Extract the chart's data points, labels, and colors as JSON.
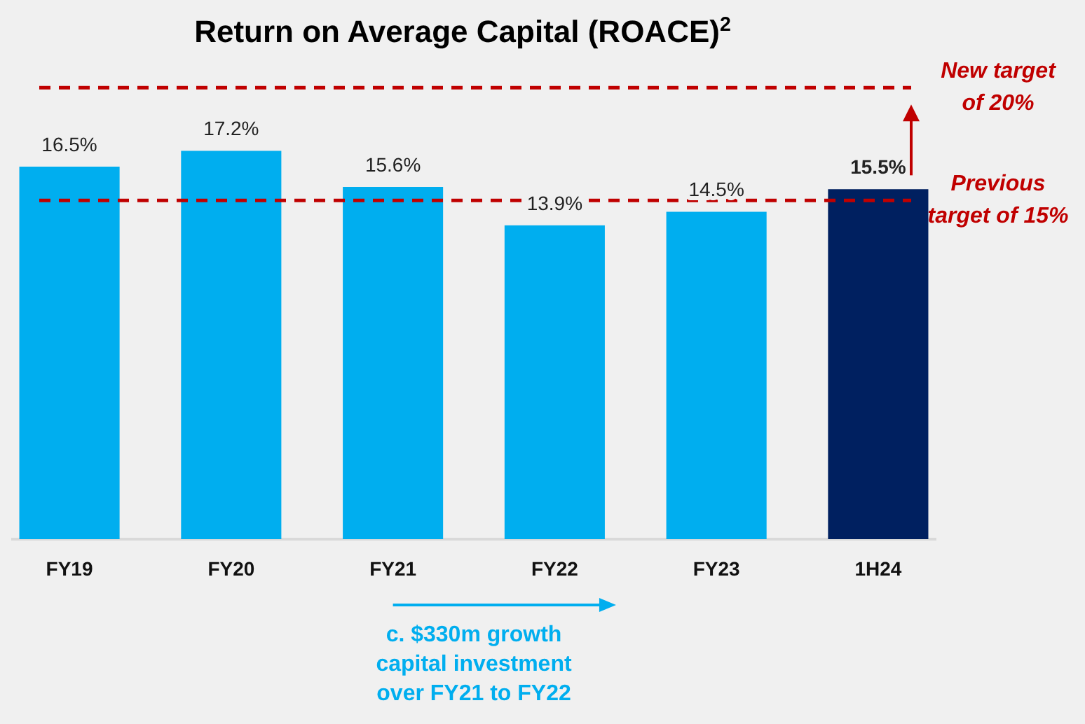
{
  "chart_data": {
    "type": "bar",
    "title": "Return on Average Capital (ROACE)$^{2}$",
    "categories": [
      "FY19",
      "FY20",
      "FY21",
      "FY22",
      "FY23",
      "1H24"
    ],
    "values": [
      16.5,
      17.2,
      15.6,
      13.9,
      14.5,
      15.5
    ],
    "colors": [
      "#00aeef",
      "#00aeef",
      "#00aeef",
      "#00aeef",
      "#00aeef",
      "#002060"
    ],
    "value_labels": [
      "16.5%",
      "17.2%",
      "15.6%",
      "13.9%",
      "14.5%",
      "15.5%"
    ],
    "ref_lines": [
      {
        "axis": "y",
        "value": 20,
        "label": "New target of 20%",
        "color": "#c00000",
        "line_style": "dashed"
      },
      {
        "axis": "y",
        "value": 15,
        "label": "Previous target of 15%",
        "color": "#c00000",
        "line_style": "dashed"
      }
    ],
    "annotations": [
      {
        "text": "c. $330m growth capital investment over FY21 to FY22"
      }
    ]
  }
}
